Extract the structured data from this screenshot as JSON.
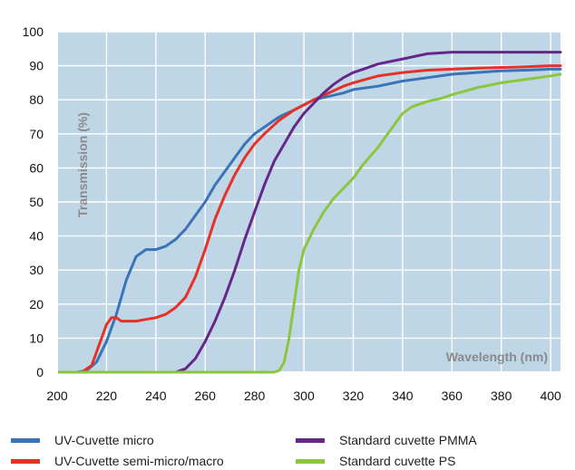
{
  "chart_data": {
    "type": "line",
    "title": "",
    "xlabel": "Wavelength (nm)",
    "ylabel": "Transmission (%)",
    "xlim": [
      200,
      404
    ],
    "ylim": [
      0,
      100
    ],
    "xticks": [
      "200",
      "220",
      "240",
      "260",
      "280",
      "300",
      "320",
      "340",
      "360",
      "380",
      "400"
    ],
    "yticks": [
      "0",
      "10",
      "20",
      "30",
      "40",
      "50",
      "60",
      "70",
      "80",
      "90",
      "100"
    ],
    "grid": true,
    "legend_position": "bottom",
    "plot_background": "#bfd6e6",
    "grid_color": "#ffffff",
    "frame_color": "#ffffff",
    "series": [
      {
        "name": "UV-Cuvette micro",
        "color": "#3a74b8",
        "x": [
          201,
          208,
          212,
          216,
          220,
          224,
          228,
          232,
          236,
          240,
          244,
          248,
          252,
          256,
          260,
          264,
          268,
          272,
          276,
          280,
          284,
          290,
          296,
          300,
          304,
          310,
          316,
          320,
          330,
          340,
          350,
          360,
          370,
          380,
          390,
          400,
          404
        ],
        "y": [
          0,
          0,
          0.5,
          3,
          9,
          17,
          27,
          34,
          36,
          36,
          37,
          39,
          42,
          46,
          50,
          55,
          59,
          63,
          67,
          70,
          72,
          75,
          77,
          78.5,
          80,
          81,
          82,
          83,
          84,
          85.5,
          86.5,
          87.5,
          88,
          88.5,
          88.7,
          89,
          89
        ]
      },
      {
        "name": "UV-Cuvette semi-micro/macro",
        "color": "#e63127",
        "x": [
          201,
          210,
          214,
          218,
          220,
          222,
          224,
          226,
          228,
          232,
          236,
          240,
          244,
          248,
          252,
          256,
          260,
          264,
          268,
          272,
          276,
          280,
          284,
          290,
          296,
          300,
          304,
          310,
          316,
          320,
          330,
          340,
          350,
          360,
          370,
          380,
          390,
          400,
          404
        ],
        "y": [
          0,
          0,
          2,
          10,
          14,
          16,
          16,
          15,
          15,
          15,
          15.5,
          16,
          17,
          19,
          22,
          28,
          36,
          45,
          52,
          58,
          63,
          67,
          70,
          74,
          77,
          78.5,
          80,
          82,
          84,
          85,
          87,
          88,
          88.7,
          89,
          89.3,
          89.5,
          89.7,
          90,
          90
        ]
      },
      {
        "name": "Standard cuvette PMMA",
        "color": "#66268a",
        "x": [
          201,
          248,
          252,
          256,
          260,
          264,
          268,
          272,
          276,
          280,
          284,
          288,
          292,
          296,
          300,
          304,
          308,
          312,
          316,
          320,
          324,
          330,
          340,
          350,
          360,
          370,
          380,
          390,
          400,
          404
        ],
        "y": [
          0,
          0,
          1,
          4,
          9,
          15,
          22,
          30,
          39,
          47,
          55,
          62,
          67,
          72,
          76,
          79,
          82,
          84.5,
          86.5,
          88,
          89,
          90.5,
          92,
          93.5,
          94,
          94,
          94,
          94,
          94,
          94
        ]
      },
      {
        "name": "Standard cuvette PS",
        "color": "#8cc63e",
        "x": [
          201,
          288,
          290,
          292,
          294,
          296,
          298,
          300,
          304,
          308,
          312,
          316,
          320,
          324,
          330,
          336,
          340,
          344,
          350,
          356,
          360,
          370,
          380,
          390,
          400,
          404
        ],
        "y": [
          0,
          0,
          0.5,
          3,
          10,
          20,
          30,
          36,
          42,
          47,
          51,
          54,
          57,
          61,
          66,
          72,
          76,
          78,
          79.5,
          80.5,
          81.5,
          83.5,
          85,
          86,
          87,
          87.5
        ]
      }
    ]
  }
}
